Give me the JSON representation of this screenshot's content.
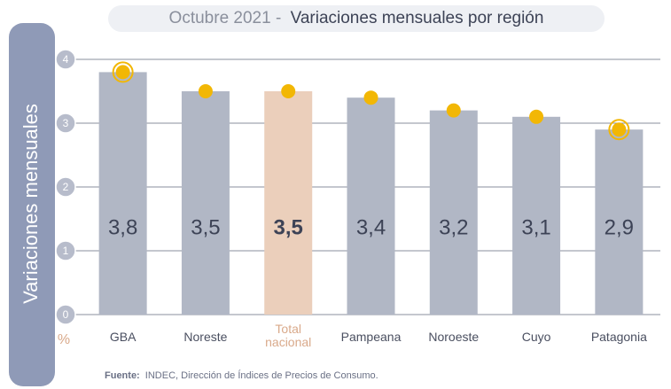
{
  "chart_data": {
    "type": "bar",
    "title_prefix": "Octubre 2021 -",
    "title": "Variaciones mensuales por región",
    "y_label": "Variaciones  mensuales",
    "y_unit": "%",
    "categories": [
      "GBA",
      "Noreste",
      "Total nacional",
      "Pampeana",
      "Noroeste",
      "Cuyo",
      "Patagonia"
    ],
    "values": [
      3.8,
      3.5,
      3.5,
      3.4,
      3.2,
      3.1,
      2.9
    ],
    "value_labels": [
      "3,8",
      "3,5",
      "3,5",
      "3,4",
      "3,2",
      "3,1",
      "2,9"
    ],
    "color": "#b1b7c5",
    "highlight_index": 2,
    "highlight_color": "#ebcfbb",
    "marker_color": "#f2b705",
    "ringed_markers": [
      0,
      6
    ],
    "ylim": [
      0,
      4
    ],
    "yticks": [
      0,
      1,
      2,
      3,
      4
    ],
    "grid": true,
    "source_label": "Fuente:",
    "source": "INDEC, Dirección de Índices de Precios de Consumo."
  }
}
